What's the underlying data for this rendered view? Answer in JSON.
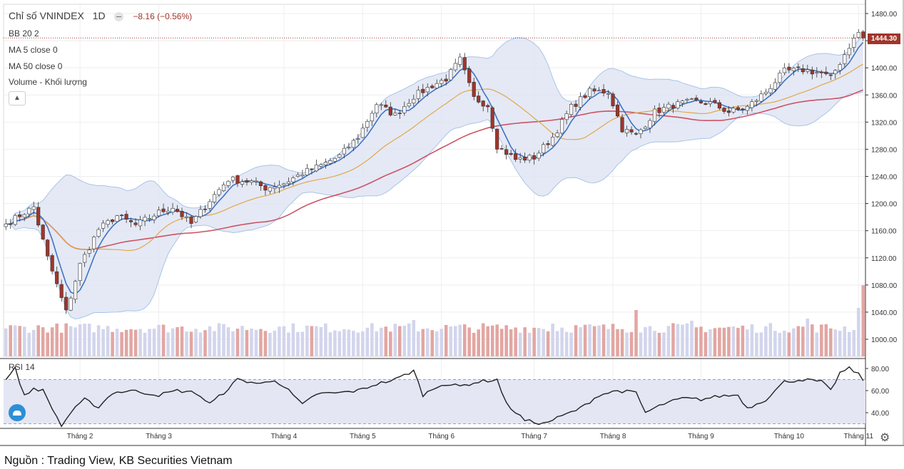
{
  "header": {
    "title": "Chỉ số VNINDEX",
    "interval": "1D",
    "change": "−8.16 (−0.56%)"
  },
  "legend": [
    "BB 20 2",
    "MA 5 close 0",
    "MA 50 close 0",
    "Volume - Khối lượng"
  ],
  "rsi_label": "RSI 14",
  "last_price_label": "1444.30",
  "source": "Nguồn : Trading View, KB Securities Vietnam",
  "colors": {
    "up_candle_fill": "#ffffff",
    "down_candle_fill": "#a0352b",
    "candle_border": "#333333",
    "ma5": "#3f74c4",
    "ma20_basis": "#e0a84a",
    "ma50": "#cc5363",
    "bands": "#a8c4e8",
    "band_fill": "#dfe3f3",
    "volume_up": "#d2d5ec",
    "volume_down": "#e2a6a2",
    "rsi_line": "#222222",
    "rsi_band_fill": "#e4e6f4"
  },
  "chart_data": {
    "type": "candlestick",
    "title": "Chỉ số VNINDEX 1D",
    "y_price_ticks": [
      "1480.00",
      "1440.00",
      "1400.00",
      "1360.00",
      "1320.00",
      "1280.00",
      "1240.00",
      "1200.00",
      "1160.00",
      "1120.00",
      "1080.00",
      "1040.00",
      "1000.00"
    ],
    "y_price_range": [
      1000,
      1480
    ],
    "x_month_labels": [
      "Tháng 2",
      "Tháng 3",
      "Tháng 4",
      "Tháng 5",
      "Tháng 6",
      "Tháng 7",
      "Tháng 8",
      "Tháng 9",
      "Tháng 10",
      "Tháng 11"
    ],
    "close_anchors": [
      [
        0,
        1170
      ],
      [
        6,
        1195
      ],
      [
        9,
        1120
      ],
      [
        13,
        1040
      ],
      [
        16,
        1110
      ],
      [
        20,
        1162
      ],
      [
        24,
        1182
      ],
      [
        28,
        1168
      ],
      [
        33,
        1187
      ],
      [
        36,
        1195
      ],
      [
        40,
        1170
      ],
      [
        44,
        1205
      ],
      [
        48,
        1236
      ],
      [
        53,
        1232
      ],
      [
        56,
        1223
      ],
      [
        60,
        1230
      ],
      [
        64,
        1245
      ],
      [
        68,
        1256
      ],
      [
        72,
        1270
      ],
      [
        76,
        1298
      ],
      [
        80,
        1347
      ],
      [
        84,
        1330
      ],
      [
        88,
        1358
      ],
      [
        92,
        1374
      ],
      [
        95,
        1384
      ],
      [
        98,
        1412
      ],
      [
        101,
        1355
      ],
      [
        104,
        1345
      ],
      [
        106,
        1285
      ],
      [
        110,
        1265
      ],
      [
        114,
        1268
      ],
      [
        118,
        1298
      ],
      [
        122,
        1342
      ],
      [
        126,
        1365
      ],
      [
        130,
        1365
      ],
      [
        133,
        1310
      ],
      [
        136,
        1300
      ],
      [
        140,
        1335
      ],
      [
        144,
        1345
      ],
      [
        148,
        1350
      ],
      [
        152,
        1348
      ],
      [
        156,
        1335
      ],
      [
        160,
        1342
      ],
      [
        164,
        1365
      ],
      [
        168,
        1395
      ],
      [
        172,
        1397
      ],
      [
        176,
        1392
      ],
      [
        178,
        1385
      ],
      [
        180,
        1408
      ],
      [
        182,
        1432
      ],
      [
        184,
        1452
      ],
      [
        185,
        1444
      ]
    ],
    "volume_range": [
      0,
      1200
    ],
    "volume_spikes": [
      [
        88,
        510
      ],
      [
        118,
        460
      ],
      [
        136,
        650
      ],
      [
        148,
        500
      ],
      [
        173,
        530
      ],
      [
        184,
        680
      ],
      [
        185,
        1000
      ]
    ],
    "rsi_ticks": [
      "80.00",
      "60.00",
      "40.00"
    ],
    "rsi_range": [
      25,
      85
    ],
    "rsi_bands": [
      30,
      70
    ],
    "rsi_anchors": [
      [
        0,
        70
      ],
      [
        2,
        80
      ],
      [
        4,
        55
      ],
      [
        6,
        62
      ],
      [
        8,
        60
      ],
      [
        12,
        28
      ],
      [
        14,
        40
      ],
      [
        17,
        52
      ],
      [
        20,
        45
      ],
      [
        23,
        58
      ],
      [
        27,
        60
      ],
      [
        33,
        56
      ],
      [
        37,
        60
      ],
      [
        41,
        58
      ],
      [
        44,
        48
      ],
      [
        47,
        58
      ],
      [
        50,
        70
      ],
      [
        55,
        66
      ],
      [
        58,
        70
      ],
      [
        61,
        60
      ],
      [
        64,
        47
      ],
      [
        67,
        57
      ],
      [
        72,
        58
      ],
      [
        76,
        60
      ],
      [
        80,
        66
      ],
      [
        84,
        70
      ],
      [
        88,
        78
      ],
      [
        90,
        56
      ],
      [
        94,
        66
      ],
      [
        98,
        64
      ],
      [
        102,
        68
      ],
      [
        106,
        70
      ],
      [
        108,
        48
      ],
      [
        112,
        33
      ],
      [
        116,
        30
      ],
      [
        120,
        37
      ],
      [
        124,
        44
      ],
      [
        128,
        56
      ],
      [
        132,
        60
      ],
      [
        136,
        58
      ],
      [
        138,
        40
      ],
      [
        142,
        48
      ],
      [
        146,
        53
      ],
      [
        150,
        52
      ],
      [
        154,
        55
      ],
      [
        158,
        56
      ],
      [
        160,
        44
      ],
      [
        164,
        52
      ],
      [
        168,
        68
      ],
      [
        172,
        70
      ],
      [
        176,
        68
      ],
      [
        178,
        60
      ],
      [
        180,
        76
      ],
      [
        182,
        80
      ],
      [
        184,
        75
      ],
      [
        185,
        70
      ]
    ],
    "series": [
      {
        "name": "MA 5 close",
        "role": "fast moving average"
      },
      {
        "name": "BB 20 basis",
        "role": "middle band"
      },
      {
        "name": "MA 50 close",
        "role": "slow moving average"
      },
      {
        "name": "RSI 14",
        "role": "oscillator"
      }
    ]
  }
}
